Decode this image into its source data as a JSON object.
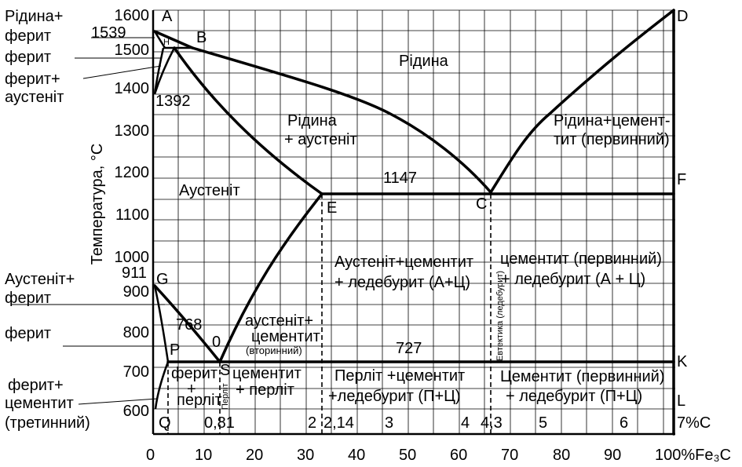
{
  "y_axis": {
    "title": "Температура, °С",
    "ticks": [
      "1600",
      "1500",
      "1400",
      "1300",
      "1200",
      "1100",
      "1000",
      "900",
      "800",
      "700",
      "600"
    ]
  },
  "x_axis_carbon": {
    "ticks": [
      "2",
      "3",
      "4",
      "5",
      "6"
    ],
    "unit": "7%C"
  },
  "x_axis_cementite": {
    "ticks": [
      "0",
      "10",
      "20",
      "30",
      "40",
      "50",
      "60",
      "70",
      "80",
      "90"
    ],
    "unit": "100%Fe₃C"
  },
  "points": {
    "A": "A",
    "B": "B",
    "D": "D",
    "F": "F",
    "E": "E",
    "C": "C",
    "G": "G",
    "P": "P",
    "S": "S",
    "K": "K",
    "L": "L",
    "Q": "Q",
    "H": "H",
    "O": "0"
  },
  "values": {
    "t1539": "1539",
    "t1392": "1392",
    "t1147": "1147",
    "t911": "911",
    "t768": "768",
    "t727": "727",
    "c081": "0,81",
    "c214": "2,14",
    "c43": "4,3"
  },
  "left_labels": {
    "liquid_ferrite": "Рідина+",
    "ferrite_1": "ферит",
    "ferrite_2": "ферит",
    "ferrite_austenite_1": "ферит+",
    "ferrite_austenite_2": "аустеніт",
    "austenite_ferrite_1": "Аустеніт+",
    "austenite_ferrite_2": "ферит",
    "ferrite_3": "ферит",
    "ferrite_cementite_1": "ферит+",
    "ferrite_cementite_2": "цементит",
    "ferrite_cementite_3": "(третинний)"
  },
  "regions": {
    "liquid": "Рідина",
    "liquid_austenite_1": "Рідина",
    "liquid_austenite_2": "+ аустеніт",
    "liquid_cementite_1": "Рідина+цемент-",
    "liquid_cementite_2": "тит (первинний)",
    "austenite": "Аустеніт",
    "aust_cem_led_1": "Аустеніт+цементит",
    "aust_cem_led_2": "+ ледебурит (А+Ц)",
    "cem_led_upper_1": "цементит (первинний)",
    "cem_led_upper_2": "+ ледебурит (А + Ц)",
    "aust_cem_1": "аустеніт+",
    "aust_cem_2": "цементит",
    "aust_cem_3": "(вторинний)",
    "eutectic": "Евтектика (ледебурит)",
    "ferrite_perlite_1": "ферит",
    "ferrite_perlite_2": "+",
    "ferrite_perlite_3": "перліт",
    "perlite": "Перліт",
    "cem_perlite_1": "цементит",
    "cem_perlite_2": "+ перліт",
    "perl_cem_led_1": "Перліт +цементит",
    "perl_cem_led_2": "+ледебурит (П+Ц)",
    "cem_led_lower_1": "Цементит (первинний)",
    "cem_led_lower_2": "+ ледебурит (П+Ц)"
  }
}
